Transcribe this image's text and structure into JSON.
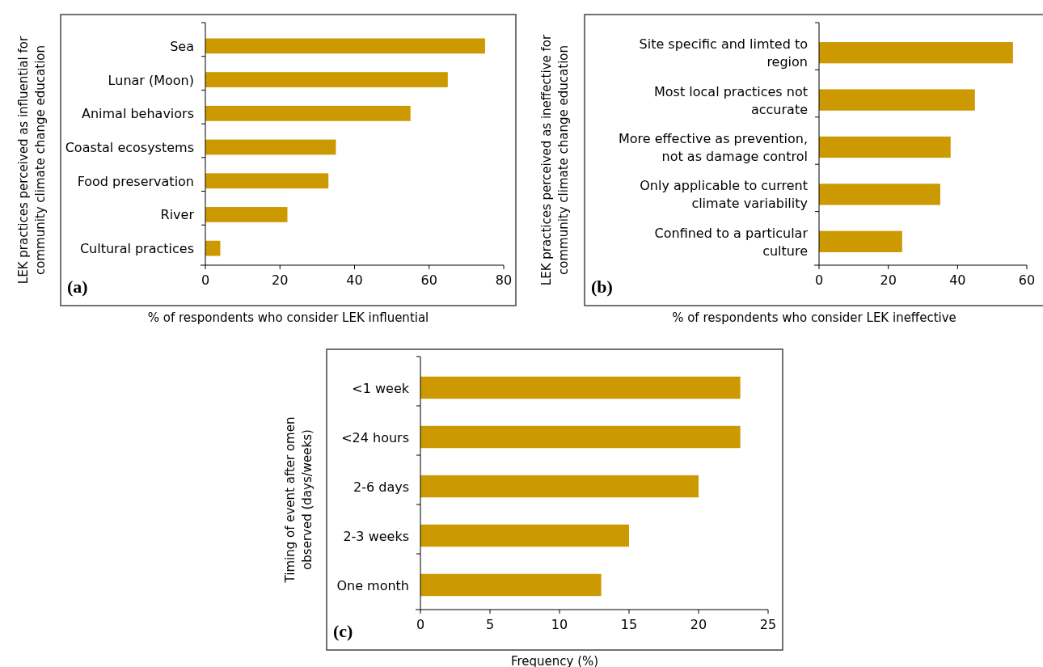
{
  "chart_data": [
    {
      "type": "bar",
      "orientation": "horizontal",
      "categories": [
        "Sea",
        "Lunar (Moon)",
        "Animal behaviors",
        "Coastal ecosystems",
        "Food preservation",
        "River",
        "Cultural practices"
      ],
      "values": [
        75,
        65,
        55,
        35,
        33,
        22,
        4
      ],
      "color": "#cc9900",
      "xlim": [
        0,
        80
      ],
      "xticks": [
        0,
        20,
        40,
        60,
        80
      ],
      "xlabel": "% of respondents who consider LEK influential",
      "ylabel": "LEK practices perceived as influential for community climate change education",
      "annotations": [
        "(a)"
      ],
      "grid": false
    },
    {
      "type": "bar",
      "orientation": "horizontal",
      "categories": [
        "Site specific and limted to region",
        "Most local practices not accurate",
        "More effective as prevention, not as damage control",
        "Only applicable to current climate variability",
        "Confined to a particular culture"
      ],
      "values": [
        56,
        45,
        38,
        35,
        24
      ],
      "color": "#cc9900",
      "xlim": [
        0,
        60
      ],
      "xticks": [
        0,
        20,
        40,
        60
      ],
      "xlabel": "% of respondents who consider LEK ineffective",
      "ylabel": "LEK practices perceived as ineffective for community climate change education",
      "annotations": [
        "(b)"
      ],
      "grid": false
    },
    {
      "type": "bar",
      "orientation": "horizontal",
      "categories": [
        "<1 week",
        "<24 hours",
        "2-6 days",
        "2-3 weeks",
        "One month"
      ],
      "values": [
        23,
        23,
        20,
        15,
        13
      ],
      "color": "#cc9900",
      "xlim": [
        0,
        25
      ],
      "xticks": [
        0,
        5,
        10,
        15,
        20,
        25
      ],
      "xlabel": "Frequency (%)",
      "ylabel": "Timing of event after omen observed (days/weeks)",
      "annotations": [
        "(c)"
      ],
      "grid": false
    }
  ]
}
